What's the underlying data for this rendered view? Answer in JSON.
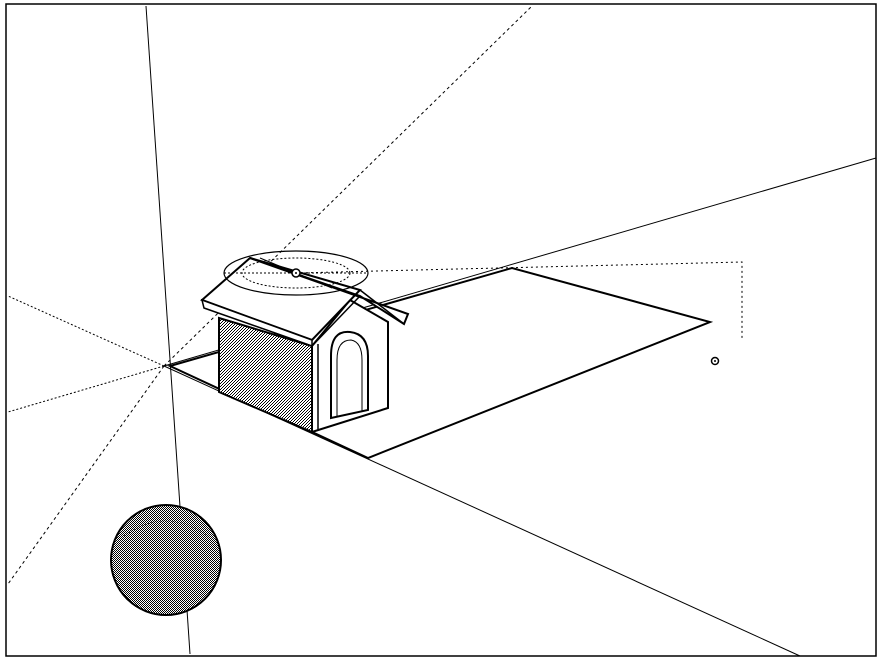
{
  "app": {
    "type": "3d-modeling-viewport",
    "render_style": "monochrome-sketch"
  },
  "colors": {
    "background": "#ffffff",
    "ink": "#000000",
    "stipple_fill": "#9a9a9a",
    "sphere_fill": "#8f8f8f"
  },
  "scene": {
    "objects": [
      {
        "name": "doghouse",
        "description_icon": "house-model"
      },
      {
        "name": "ground-plane",
        "description_icon": "rectangle-face"
      },
      {
        "name": "sphere",
        "description_icon": "sphere-model"
      },
      {
        "name": "rotate-protractor",
        "description_icon": "protractor-icon"
      },
      {
        "name": "construction-point",
        "description_icon": "point-icon"
      }
    ],
    "axes": [
      "red-axis",
      "green-axis",
      "blue-axis"
    ]
  }
}
